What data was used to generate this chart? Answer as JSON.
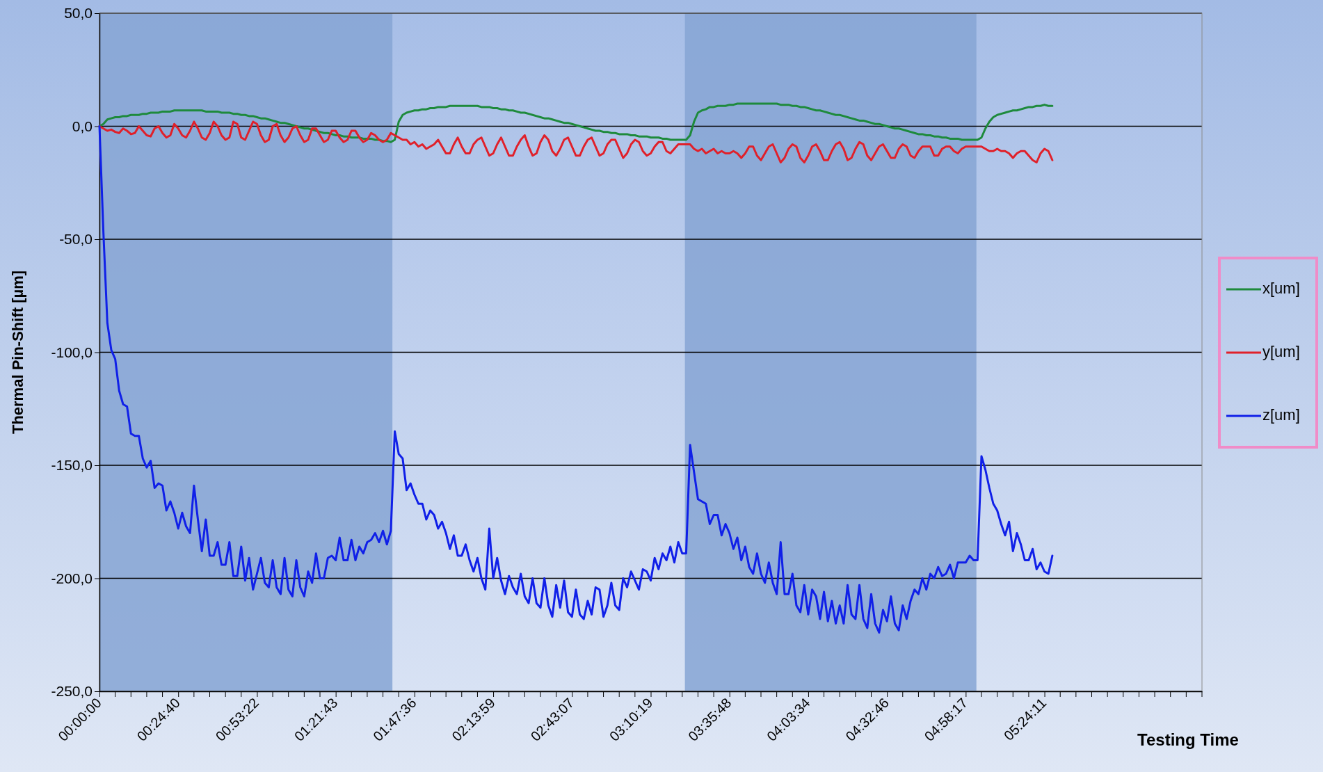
{
  "chart_data": {
    "type": "line",
    "xlabel": "Testing Time",
    "ylabel": "Thermal Pin-Shift [µm]",
    "categories": [
      "00:00:00",
      null,
      null,
      null,
      null,
      null,
      null,
      null,
      null,
      null,
      null,
      null,
      null,
      null,
      null,
      null,
      null,
      null,
      null,
      null,
      "00:24:40",
      null,
      null,
      null,
      null,
      null,
      null,
      null,
      null,
      null,
      null,
      null,
      null,
      null,
      null,
      null,
      null,
      null,
      null,
      null,
      "00:53:22",
      null,
      null,
      null,
      null,
      null,
      null,
      null,
      null,
      null,
      null,
      null,
      null,
      null,
      null,
      null,
      null,
      null,
      null,
      null,
      "01:21:43",
      null,
      null,
      null,
      null,
      null,
      null,
      null,
      null,
      null,
      null,
      null,
      null,
      null,
      null,
      null,
      null,
      null,
      null,
      null,
      "01:47:36",
      null,
      null,
      null,
      null,
      null,
      null,
      null,
      null,
      null,
      null,
      null,
      null,
      null,
      null,
      null,
      null,
      null,
      null,
      null,
      "02:13:59",
      null,
      null,
      null,
      null,
      null,
      null,
      null,
      null,
      null,
      null,
      null,
      null,
      null,
      null,
      null,
      null,
      null,
      null,
      null,
      "02:43:07",
      null,
      null,
      null,
      null,
      null,
      null,
      null,
      null,
      null,
      null,
      null,
      null,
      null,
      null,
      null,
      null,
      null,
      null,
      null,
      "03:10:19",
      null,
      null,
      null,
      null,
      null,
      null,
      null,
      null,
      null,
      null,
      null,
      null,
      null,
      null,
      null,
      null,
      null,
      null,
      null,
      "03:35:48",
      null,
      null,
      null,
      null,
      null,
      null,
      null,
      null,
      null,
      null,
      null,
      null,
      null,
      null,
      null,
      null,
      null,
      null,
      null,
      "04:03:34",
      null,
      null,
      null,
      null,
      null,
      null,
      null,
      null,
      null,
      null,
      null,
      null,
      null,
      null,
      null,
      null,
      null,
      null,
      null,
      "04:32:46",
      null,
      null,
      null,
      null,
      null,
      null,
      null,
      null,
      null,
      null,
      null,
      null,
      null,
      null,
      null,
      null,
      null,
      null,
      null,
      "04:58:17",
      null,
      null,
      null,
      null,
      null,
      null,
      null,
      null,
      null,
      null,
      null,
      null,
      null,
      null,
      null,
      null,
      null,
      null,
      null,
      "05:24:11",
      null,
      null,
      null,
      null,
      null,
      null,
      null,
      null,
      null,
      null,
      null,
      null,
      null,
      null,
      null,
      null,
      null,
      null,
      null,
      null,
      null,
      null,
      null,
      null,
      null,
      null,
      null,
      null,
      null,
      null,
      null,
      null,
      null,
      null,
      null,
      null,
      null,
      null,
      null,
      null
    ],
    "series": [
      {
        "name": "x[um]",
        "color": "#1e8a3c",
        "values": [
          0,
          1,
          3,
          3.5,
          4,
          4,
          4.5,
          4.5,
          5,
          5,
          5,
          5.5,
          5.5,
          6,
          6,
          6,
          6.5,
          6.5,
          6.5,
          7,
          7,
          7,
          7,
          7,
          7,
          7,
          7,
          6.5,
          6.5,
          6.5,
          6.5,
          6,
          6,
          6,
          5.5,
          5.5,
          5,
          5,
          4.5,
          4.5,
          4,
          3.5,
          3.5,
          3,
          2.5,
          2,
          1.5,
          1.5,
          1,
          0.5,
          0,
          -0.5,
          -1,
          -1,
          -1.5,
          -2,
          -2.5,
          -3,
          -3,
          -3.5,
          -4,
          -4,
          -4.5,
          -4.5,
          -5,
          -5,
          -5,
          -5.5,
          -5.5,
          -5.5,
          -6,
          -6,
          -6.5,
          -6.5,
          -7,
          -6,
          2,
          5,
          6,
          6.5,
          7,
          7,
          7.5,
          7.5,
          8,
          8,
          8.5,
          8.5,
          8.5,
          9,
          9,
          9,
          9,
          9,
          9,
          9,
          9,
          8.5,
          8.5,
          8.5,
          8,
          8,
          7.5,
          7.5,
          7,
          7,
          6.5,
          6,
          6,
          5.5,
          5,
          4.5,
          4,
          3.5,
          3.5,
          3,
          2.5,
          2,
          1.5,
          1.5,
          1,
          0.5,
          0,
          -0.5,
          -1,
          -1.5,
          -2,
          -2,
          -2.5,
          -2.5,
          -3,
          -3,
          -3.5,
          -3.5,
          -3.5,
          -4,
          -4,
          -4.5,
          -4.5,
          -4.5,
          -5,
          -5,
          -5,
          -5.5,
          -5.5,
          -6,
          -6,
          -6,
          -6,
          -6,
          -4,
          2,
          6,
          7,
          7.5,
          8.5,
          8.5,
          9,
          9,
          9,
          9.5,
          9.5,
          10,
          10,
          10,
          10,
          10,
          10,
          10,
          10,
          10,
          10,
          10,
          9.5,
          9.5,
          9.5,
          9,
          9,
          8.5,
          8.5,
          8,
          7.5,
          7,
          7,
          6.5,
          6,
          5.5,
          5,
          5,
          4.5,
          4,
          3.5,
          3,
          2.5,
          2.5,
          2,
          1.5,
          1,
          1,
          0.5,
          0,
          -0.5,
          -1,
          -1,
          -1.5,
          -2,
          -2.5,
          -3,
          -3.5,
          -3.5,
          -4,
          -4,
          -4.5,
          -4.5,
          -5,
          -5,
          -5.5,
          -5.5,
          -5.5,
          -6,
          -6,
          -6,
          -6,
          -6,
          -5,
          -1,
          2,
          4,
          5,
          5.5,
          6,
          6.5,
          7,
          7,
          7.5,
          8,
          8.5,
          8.5,
          9,
          9,
          9.5,
          9,
          9,
          null,
          null,
          null,
          null,
          null,
          null,
          null,
          null,
          null,
          null,
          null,
          null,
          null,
          null,
          null,
          null,
          null,
          null,
          null,
          null,
          null,
          null,
          null,
          null,
          null,
          null,
          null,
          null,
          null,
          null,
          null,
          null,
          null,
          null,
          null,
          null,
          null,
          null
        ]
      },
      {
        "name": "y[um]",
        "color": "#e0202a",
        "values": [
          0,
          -1,
          -2,
          -1.5,
          -2.5,
          -3,
          -1,
          -2,
          -3.5,
          -3,
          0,
          -2,
          -4,
          -4.5,
          -1,
          0,
          -3,
          -5,
          -4,
          1,
          -1,
          -4,
          -5,
          -2,
          2,
          -1,
          -5,
          -6,
          -3,
          2,
          0,
          -4,
          -6,
          -5,
          2,
          1,
          -5,
          -6,
          -2,
          2,
          1,
          -4,
          -7,
          -6,
          0,
          1,
          -4,
          -7,
          -5,
          -1,
          0,
          -4,
          -7,
          -6,
          -1,
          -1,
          -4,
          -7,
          -6,
          -2,
          -2,
          -5,
          -7,
          -6,
          -2,
          -2,
          -5,
          -7,
          -6,
          -3,
          -4,
          -6,
          -7,
          -6,
          -3,
          -4,
          -5,
          -6,
          -6,
          -8,
          -7,
          -9,
          -8,
          -10,
          -9,
          -8,
          -6,
          -9,
          -12,
          -12,
          -8,
          -5,
          -9,
          -12,
          -12,
          -8,
          -6,
          -5,
          -9,
          -13,
          -12,
          -8,
          -5,
          -9,
          -13,
          -13,
          -9,
          -6,
          -4,
          -9,
          -13,
          -12,
          -7,
          -4,
          -6,
          -11,
          -13,
          -10,
          -6,
          -5,
          -9,
          -13,
          -13,
          -9,
          -6,
          -5,
          -9,
          -13,
          -12,
          -8,
          -6,
          -6,
          -10,
          -14,
          -12,
          -8,
          -6,
          -7,
          -11,
          -13,
          -12,
          -9,
          -7,
          -7,
          -11,
          -12,
          -10,
          -8,
          -8,
          -8,
          -8,
          -10,
          -11,
          -10,
          -12,
          -11,
          -10,
          -12,
          -11,
          -12,
          -12,
          -11,
          -12,
          -14,
          -12,
          -9,
          -9,
          -13,
          -15,
          -12,
          -9,
          -8,
          -12,
          -16,
          -14,
          -10,
          -8,
          -9,
          -14,
          -16,
          -13,
          -9,
          -8,
          -11,
          -15,
          -15,
          -11,
          -8,
          -7,
          -10,
          -15,
          -14,
          -10,
          -7,
          -8,
          -13,
          -15,
          -12,
          -9,
          -8,
          -11,
          -14,
          -14,
          -10,
          -8,
          -9,
          -13,
          -14,
          -11,
          -9,
          -9,
          -9,
          -13,
          -13,
          -10,
          -9,
          -9,
          -11,
          -12,
          -10,
          -9,
          -9,
          -9,
          -9,
          -9,
          -10,
          -11,
          -11,
          -10,
          -11,
          -11,
          -12,
          -14,
          -12,
          -11,
          -11,
          -13,
          -15,
          -16,
          -12,
          -10,
          -11,
          -15,
          null,
          null,
          null,
          null,
          null,
          null,
          null,
          null,
          null,
          null,
          null,
          null,
          null,
          null,
          null,
          null,
          null,
          null,
          null,
          null,
          null,
          null,
          null,
          null,
          null,
          null,
          null,
          null,
          null,
          null,
          null,
          null,
          null,
          null,
          null,
          null,
          null,
          null
        ]
      },
      {
        "name": "z[um]",
        "color": "#1020e8",
        "values": [
          0,
          -47,
          -87,
          -99,
          -103,
          -117,
          -123,
          -124,
          -136,
          -137,
          -137,
          -147,
          -151,
          -148,
          -160,
          -158,
          -159,
          -170,
          -166,
          -171,
          -178,
          -171,
          -177,
          -180,
          -159,
          -174,
          -188,
          -174,
          -190,
          -190,
          -184,
          -194,
          -194,
          -184,
          -199,
          -199,
          -186,
          -201,
          -191,
          -205,
          -198,
          -191,
          -202,
          -204,
          -192,
          -204,
          -207,
          -191,
          -205,
          -208,
          -192,
          -204,
          -208,
          -197,
          -202,
          -189,
          -200,
          -200,
          -191,
          -190,
          -192,
          -182,
          -192,
          -192,
          -183,
          -192,
          -186,
          -189,
          -184,
          -183,
          -180,
          -184,
          -179,
          -185,
          -179,
          -135,
          -145,
          -147,
          -161,
          -158,
          -163,
          -167,
          -167,
          -174,
          -170,
          -172,
          -178,
          -175,
          -180,
          -187,
          -181,
          -190,
          -190,
          -185,
          -192,
          -197,
          -191,
          -200,
          -205,
          -178,
          -200,
          -191,
          -201,
          -207,
          -199,
          -204,
          -207,
          -198,
          -208,
          -211,
          -200,
          -211,
          -213,
          -200,
          -212,
          -217,
          -203,
          -213,
          -201,
          -215,
          -217,
          -205,
          -216,
          -218,
          -210,
          -216,
          -204,
          -205,
          -217,
          -212,
          -202,
          -212,
          -214,
          -200,
          -204,
          -197,
          -201,
          -205,
          -196,
          -197,
          -201,
          -191,
          -196,
          -189,
          -192,
          -186,
          -193,
          -184,
          -189,
          -189,
          -141,
          -153,
          -165,
          -166,
          -167,
          -176,
          -172,
          -172,
          -181,
          -176,
          -180,
          -187,
          -182,
          -192,
          -186,
          -195,
          -198,
          -189,
          -198,
          -202,
          -193,
          -202,
          -207,
          -184,
          -207,
          -207,
          -198,
          -212,
          -215,
          -203,
          -216,
          -205,
          -208,
          -218,
          -206,
          -219,
          -210,
          -220,
          -212,
          -220,
          -203,
          -216,
          -218,
          -203,
          -218,
          -222,
          -207,
          -220,
          -224,
          -214,
          -219,
          -208,
          -220,
          -223,
          -212,
          -218,
          -210,
          -205,
          -207,
          -200,
          -205,
          -198,
          -200,
          -195,
          -199,
          -198,
          -194,
          -200,
          -193,
          -193,
          -193,
          -190,
          -192,
          -192,
          -146,
          -152,
          -160,
          -167,
          -170,
          -176,
          -181,
          -175,
          -188,
          -180,
          -185,
          -192,
          -192,
          -187,
          -196,
          -193,
          -197,
          -198,
          -190,
          null,
          null,
          null,
          null,
          null,
          null,
          null,
          null,
          null,
          null,
          null,
          null,
          null,
          null,
          null,
          null,
          null,
          null,
          null,
          null,
          null,
          null,
          null,
          null,
          null,
          null,
          null,
          null,
          null,
          null,
          null,
          null,
          null,
          null,
          null,
          null,
          null,
          null
        ]
      }
    ],
    "ylim": [
      -250,
      50
    ],
    "yticks": [
      {
        "value": 50,
        "label": "50,0"
      },
      {
        "value": 0,
        "label": "0,0"
      },
      {
        "value": -50,
        "label": "-50,0"
      },
      {
        "value": -100,
        "label": "-100,0"
      },
      {
        "value": -150,
        "label": "-150,0"
      },
      {
        "value": -200,
        "label": "-200,0"
      },
      {
        "value": -250,
        "label": "-250,0"
      }
    ],
    "grid": "y",
    "legend": "right",
    "marker": "none",
    "line_style": "solid"
  }
}
